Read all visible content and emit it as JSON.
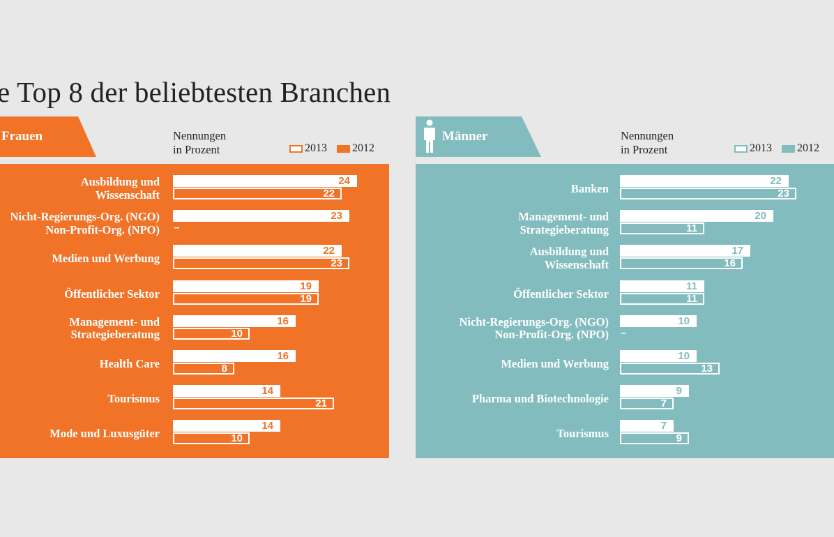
{
  "title": "e Top 8 der beliebtesten Branchen",
  "colors": {
    "frauen": "#f07328",
    "maenner": "#83bcbe",
    "background": "#e8e8e9"
  },
  "icons": {
    "maenner": "male-figure-icon"
  },
  "chart_data": [
    {
      "type": "bar",
      "panel": "Frauen",
      "units_label": "Nennungen\nin Prozent",
      "categories": [
        "Ausbildung und\nWissenschaft",
        "Nicht-Regierungs-Org. (NGO)\nNon-Profit-Org. (NPO)",
        "Medien und Werbung",
        "Öffentlicher Sektor",
        "Management- und\nStrategieberatung",
        "Health Care",
        "Tourismus",
        "Mode und Luxusgüter"
      ],
      "series": [
        {
          "name": "2013",
          "values": [
            24,
            23,
            22,
            19,
            16,
            16,
            14,
            14
          ]
        },
        {
          "name": "2012",
          "values": [
            22,
            null,
            23,
            19,
            10,
            8,
            21,
            10
          ]
        }
      ],
      "missing_label": "–"
    },
    {
      "type": "bar",
      "panel": "Männer",
      "units_label": "Nennungen\nin Prozent",
      "categories": [
        "Banken",
        "Management- und\nStrategieberatung",
        "Ausbildung und\nWissenschaft",
        "Öffentlicher Sektor",
        "Nicht-Regierungs-Org. (NGO)\nNon-Profit-Org. (NPO)",
        "Medien und Werbung",
        "Pharma und Biotechnologie",
        "Tourismus"
      ],
      "series": [
        {
          "name": "2013",
          "values": [
            22,
            20,
            17,
            11,
            10,
            10,
            9,
            7
          ]
        },
        {
          "name": "2012",
          "values": [
            23,
            11,
            16,
            11,
            null,
            13,
            7,
            9
          ]
        }
      ],
      "missing_label": "–"
    }
  ]
}
